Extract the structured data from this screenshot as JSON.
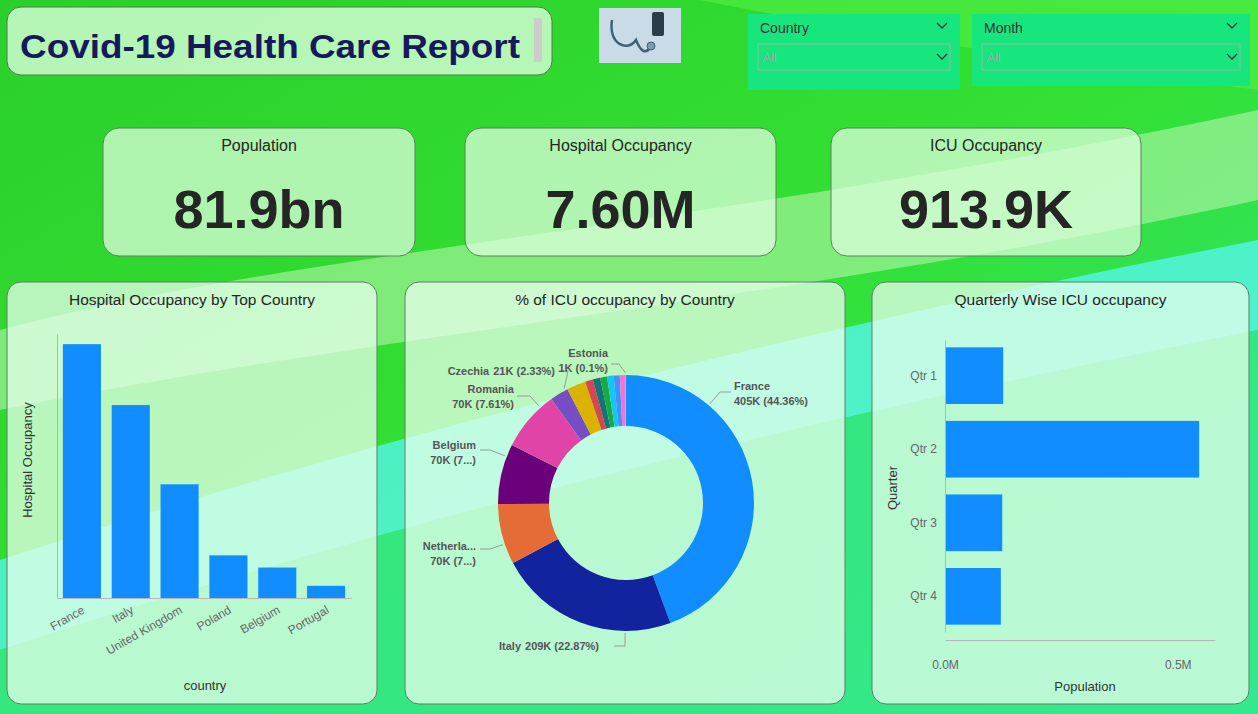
{
  "header": {
    "title": "Covid-19 Health Care Report"
  },
  "filters": [
    {
      "label": "Country",
      "value": "All"
    },
    {
      "label": "Month",
      "value": "All"
    }
  ],
  "cards": [
    {
      "label": "Population",
      "value": "81.9bn"
    },
    {
      "label": "Hospital Occupancy",
      "value": "7.60M"
    },
    {
      "label": "ICU Occupancy",
      "value": "913.9K"
    }
  ],
  "chart_data": [
    {
      "type": "bar",
      "title": "Hospital Occupancy by Top Country",
      "x_label": "country",
      "y_label": "Hospital Occupancy",
      "categories": [
        "France",
        "Italy",
        "United Kingdom",
        "Poland",
        "Belgium",
        "Portugal"
      ],
      "values": [
        2500000,
        1900000,
        1120000,
        420000,
        300000,
        120000
      ],
      "color": "#118dff",
      "ylim": [
        0,
        2600000
      ],
      "tick_labels": "x",
      "grid": false
    },
    {
      "type": "donut",
      "title": "% of ICU occupancy by Country",
      "categories": [
        "France",
        "Italy",
        "Netherla...",
        "Belgium",
        "Romania",
        "Czechia",
        null,
        null,
        null,
        null,
        null,
        null,
        null,
        "Estonia"
      ],
      "values": [
        405406,
        209009,
        69800,
        69700,
        69548,
        21294,
        22000,
        9000,
        8500,
        8000,
        7500,
        7000,
        6229,
        914
      ],
      "value_labels": [
        "405K (44.36%)",
        "209K (22.87%)",
        "70K (7...)",
        "70K (7...)",
        "70K (7.61%)",
        "21K (2.33%)",
        null,
        null,
        null,
        null,
        null,
        null,
        null,
        "1K (0.1%)"
      ],
      "colors": [
        "#118dff",
        "#12239e",
        "#e66c37",
        "#6b007b",
        "#e044a7",
        "#744ec2",
        "#d9b300",
        "#d64550",
        "#197278",
        "#1aab40",
        "#15c6f4",
        "#4092ff",
        "#f472d0",
        "#ff8eb0"
      ],
      "data_labels": true
    },
    {
      "type": "bar",
      "orientation": "horizontal",
      "title": "Quarterly Wise ICU occupancy",
      "x_label": "Population",
      "y_label": "Quarter",
      "categories": [
        "Qtr 1",
        "Qtr 2",
        "Qtr 3",
        "Qtr 4"
      ],
      "values": [
        125000,
        546000,
        123000,
        119900
      ],
      "color": "#118dff",
      "xlim": [
        0,
        580000
      ],
      "xticks": [
        {
          "value": 0,
          "label": "0.0M"
        },
        {
          "value": 500000,
          "label": "0.5M"
        }
      ],
      "grid": false
    }
  ]
}
